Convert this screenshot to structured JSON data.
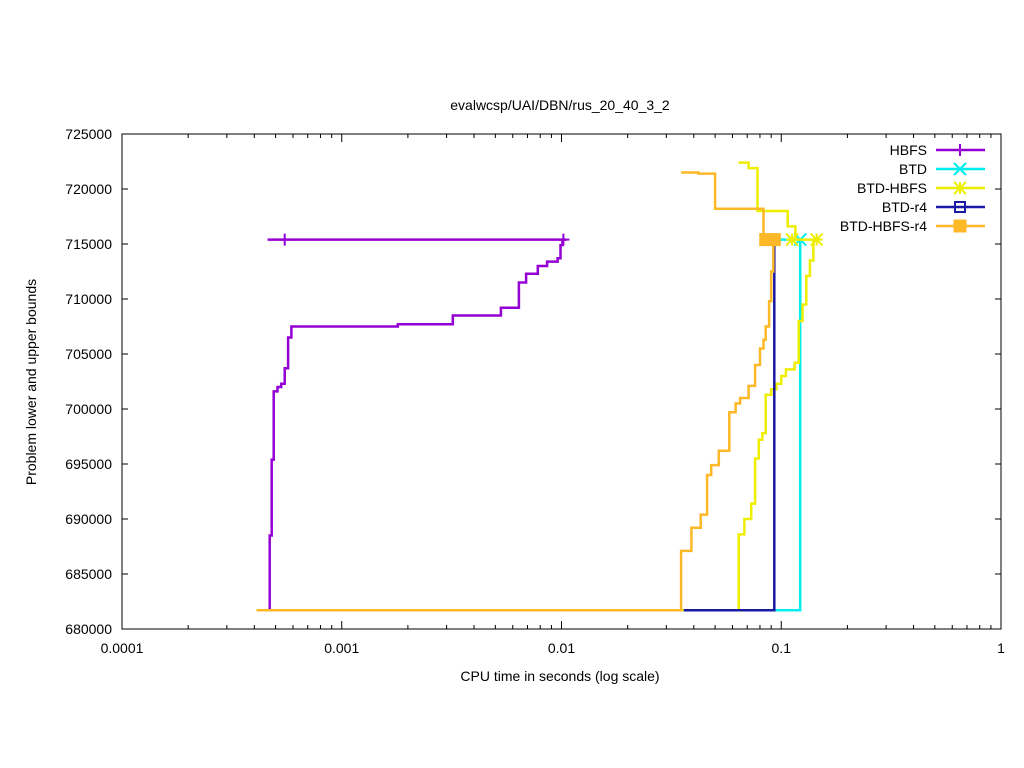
{
  "chart_data": {
    "type": "line",
    "title": "evalwcsp/UAI/DBN/rus_20_40_3_2",
    "xlabel": "CPU time in seconds (log scale)",
    "ylabel": "Problem lower and upper bounds",
    "x_scale": "log",
    "xlim": [
      0.0001,
      1
    ],
    "ylim": [
      680000,
      725000
    ],
    "x_ticks": [
      {
        "value": 0.0001,
        "label": "0.0001"
      },
      {
        "value": 0.001,
        "label": "0.001"
      },
      {
        "value": 0.01,
        "label": "0.01"
      },
      {
        "value": 0.1,
        "label": "0.1"
      },
      {
        "value": 1,
        "label": "1"
      }
    ],
    "y_ticks": [
      {
        "value": 680000,
        "label": "680000"
      },
      {
        "value": 685000,
        "label": "685000"
      },
      {
        "value": 690000,
        "label": "690000"
      },
      {
        "value": 695000,
        "label": "695000"
      },
      {
        "value": 700000,
        "label": "700000"
      },
      {
        "value": 705000,
        "label": "705000"
      },
      {
        "value": 710000,
        "label": "710000"
      },
      {
        "value": 715000,
        "label": "715000"
      },
      {
        "value": 720000,
        "label": "720000"
      },
      {
        "value": 725000,
        "label": "725000"
      }
    ],
    "legend_position": "top-right",
    "grid": false,
    "series": [
      {
        "name": "HBFS",
        "color": "#9400d3",
        "marker": "plus",
        "lower": [
          [
            0.00041,
            681700
          ],
          [
            0.00047,
            681700
          ],
          [
            0.00047,
            688500
          ],
          [
            0.00048,
            688500
          ],
          [
            0.00048,
            695400
          ],
          [
            0.00049,
            695400
          ],
          [
            0.00049,
            701600
          ],
          [
            0.00051,
            701600
          ],
          [
            0.00051,
            702000
          ],
          [
            0.00053,
            702000
          ],
          [
            0.00053,
            702300
          ],
          [
            0.00055,
            702300
          ],
          [
            0.00055,
            703700
          ],
          [
            0.00057,
            703700
          ],
          [
            0.00057,
            706500
          ],
          [
            0.00059,
            706500
          ],
          [
            0.00059,
            707500
          ],
          [
            0.0018,
            707500
          ],
          [
            0.0018,
            707700
          ],
          [
            0.0032,
            707700
          ],
          [
            0.0032,
            708500
          ],
          [
            0.0053,
            708500
          ],
          [
            0.0053,
            709200
          ],
          [
            0.0064,
            709200
          ],
          [
            0.0064,
            711500
          ],
          [
            0.0069,
            711500
          ],
          [
            0.0069,
            712300
          ],
          [
            0.0078,
            712300
          ],
          [
            0.0078,
            713000
          ],
          [
            0.0086,
            713000
          ],
          [
            0.0086,
            713400
          ],
          [
            0.0096,
            713400
          ],
          [
            0.0096,
            713700
          ],
          [
            0.0099,
            713700
          ],
          [
            0.0099,
            714900
          ],
          [
            0.0101,
            714900
          ],
          [
            0.0101,
            715300
          ]
        ],
        "upper": [
          [
            0.00046,
            715400
          ],
          [
            0.0105,
            715400
          ]
        ],
        "markers": [
          [
            0.00055,
            715400
          ],
          [
            0.0102,
            715400
          ]
        ]
      },
      {
        "name": "BTD",
        "color": "#00eeee",
        "marker": "cross",
        "lower": [
          [
            0.00041,
            681700
          ],
          [
            0.122,
            681700
          ],
          [
            0.122,
            715400
          ]
        ],
        "upper": [
          [
            0.092,
            715400
          ],
          [
            0.123,
            715400
          ]
        ],
        "markers": [
          [
            0.122,
            715400
          ]
        ]
      },
      {
        "name": "BTD-HBFS",
        "color": "#eeee00",
        "marker": "star",
        "lower": [
          [
            0.00041,
            681700
          ],
          [
            0.064,
            681700
          ],
          [
            0.064,
            688600
          ],
          [
            0.068,
            688600
          ],
          [
            0.068,
            690000
          ],
          [
            0.073,
            690000
          ],
          [
            0.073,
            691400
          ],
          [
            0.076,
            691400
          ],
          [
            0.076,
            695500
          ],
          [
            0.079,
            695500
          ],
          [
            0.079,
            697200
          ],
          [
            0.082,
            697200
          ],
          [
            0.082,
            697800
          ],
          [
            0.085,
            697800
          ],
          [
            0.085,
            701300
          ],
          [
            0.09,
            701300
          ],
          [
            0.09,
            701800
          ],
          [
            0.095,
            701800
          ],
          [
            0.095,
            702300
          ],
          [
            0.1,
            702300
          ],
          [
            0.1,
            703000
          ],
          [
            0.105,
            703000
          ],
          [
            0.105,
            703600
          ],
          [
            0.115,
            703600
          ],
          [
            0.115,
            704200
          ],
          [
            0.12,
            704200
          ],
          [
            0.12,
            708000
          ],
          [
            0.125,
            708000
          ],
          [
            0.125,
            709500
          ],
          [
            0.13,
            709500
          ],
          [
            0.13,
            712100
          ],
          [
            0.135,
            712100
          ],
          [
            0.135,
            713500
          ],
          [
            0.14,
            713500
          ],
          [
            0.14,
            715400
          ]
        ],
        "upper": [
          [
            0.064,
            722400
          ],
          [
            0.071,
            722400
          ],
          [
            0.071,
            721900
          ],
          [
            0.078,
            721900
          ],
          [
            0.078,
            718000
          ],
          [
            0.107,
            718000
          ],
          [
            0.107,
            716600
          ],
          [
            0.116,
            716600
          ],
          [
            0.116,
            715400
          ],
          [
            0.145,
            715400
          ]
        ],
        "markers": [
          [
            0.112,
            715400
          ],
          [
            0.145,
            715400
          ]
        ]
      },
      {
        "name": "BTD-r4",
        "color": "#1a1aa5",
        "marker": "square",
        "lower": [
          [
            0.036,
            681700
          ],
          [
            0.093,
            681700
          ],
          [
            0.093,
            715400
          ]
        ],
        "upper": [
          [
            0.086,
            715400
          ],
          [
            0.093,
            715400
          ]
        ],
        "markers": []
      },
      {
        "name": "BTD-HBFS-r4",
        "color": "#fdb827",
        "marker": "filled-square",
        "lower": [
          [
            0.00041,
            681700
          ],
          [
            0.035,
            681700
          ],
          [
            0.035,
            687100
          ],
          [
            0.039,
            687100
          ],
          [
            0.039,
            689200
          ],
          [
            0.043,
            689200
          ],
          [
            0.043,
            690400
          ],
          [
            0.046,
            690400
          ],
          [
            0.046,
            694000
          ],
          [
            0.048,
            694000
          ],
          [
            0.048,
            694900
          ],
          [
            0.052,
            694900
          ],
          [
            0.052,
            696200
          ],
          [
            0.058,
            696200
          ],
          [
            0.058,
            699700
          ],
          [
            0.062,
            699700
          ],
          [
            0.062,
            700500
          ],
          [
            0.065,
            700500
          ],
          [
            0.065,
            701000
          ],
          [
            0.071,
            701000
          ],
          [
            0.071,
            702100
          ],
          [
            0.076,
            702100
          ],
          [
            0.076,
            704000
          ],
          [
            0.08,
            704000
          ],
          [
            0.08,
            705500
          ],
          [
            0.083,
            705500
          ],
          [
            0.083,
            706300
          ],
          [
            0.085,
            706300
          ],
          [
            0.085,
            707500
          ],
          [
            0.088,
            707500
          ],
          [
            0.088,
            709800
          ],
          [
            0.09,
            709800
          ],
          [
            0.09,
            712500
          ],
          [
            0.092,
            712500
          ],
          [
            0.092,
            715400
          ]
        ],
        "upper": [
          [
            0.035,
            721500
          ],
          [
            0.042,
            721500
          ],
          [
            0.042,
            721400
          ],
          [
            0.05,
            721400
          ],
          [
            0.05,
            718200
          ],
          [
            0.083,
            718200
          ],
          [
            0.083,
            715400
          ],
          [
            0.094,
            715400
          ]
        ],
        "markers": [
          [
            0.085,
            715400
          ],
          [
            0.093,
            715400
          ]
        ]
      }
    ]
  }
}
